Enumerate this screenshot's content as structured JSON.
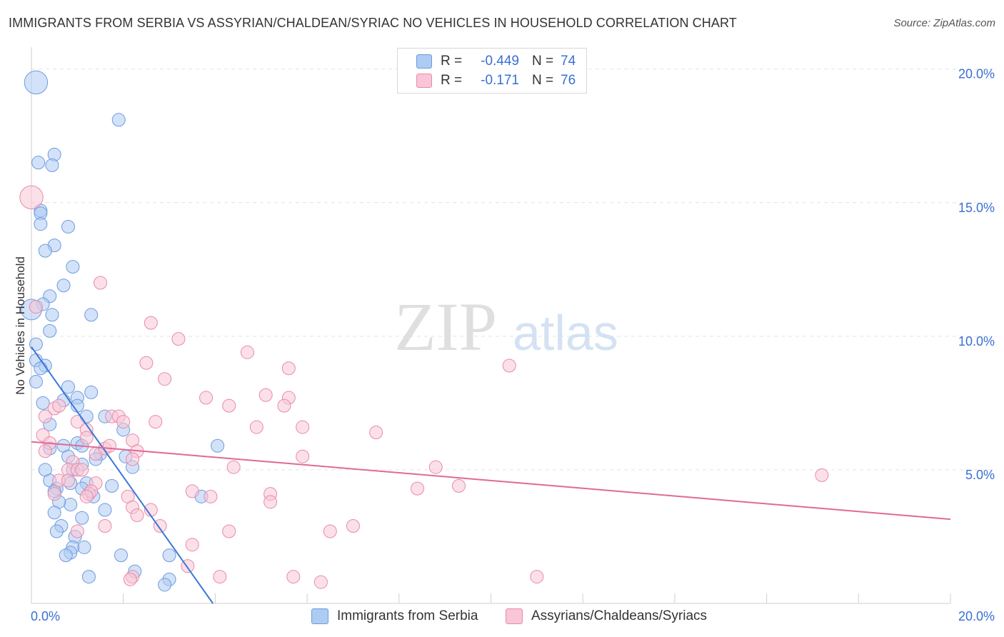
{
  "title": "IMMIGRANTS FROM SERBIA VS ASSYRIAN/CHALDEAN/SYRIAC NO VEHICLES IN HOUSEHOLD CORRELATION CHART",
  "source": "Source: ZipAtlas.com",
  "watermark": {
    "zip": "ZIP",
    "atlas": "atlas"
  },
  "legend_top": [
    {
      "label": "R =",
      "r": "-0.449",
      "n_label": "N =",
      "n": "74",
      "color": "#aecbf2",
      "border": "#6b9be0"
    },
    {
      "label": "R =",
      "r": "-0.171",
      "n_label": "N =",
      "n": "76",
      "color": "#f8c6d6",
      "border": "#e88aab"
    }
  ],
  "legend_bottom": [
    {
      "label": "Immigrants from Serbia",
      "color": "#aecbf2",
      "border": "#6b9be0"
    },
    {
      "label": "Assyrians/Chaldeans/Syriacs",
      "color": "#f8c6d6",
      "border": "#e88aab"
    }
  ],
  "chart_data": {
    "type": "scatter",
    "title": "IMMIGRANTS FROM SERBIA VS ASSYRIAN/CHALDEAN/SYRIAC NO VEHICLES IN HOUSEHOLD CORRELATION CHART",
    "xlabel": "",
    "ylabel": "No Vehicles in Household",
    "xlim": [
      0,
      20
    ],
    "ylim": [
      0,
      20.5
    ],
    "x_tick_labels": [
      {
        "value": 0,
        "label": "0.0%"
      },
      {
        "value": 20,
        "label": "20.0%"
      }
    ],
    "y_tick_labels": [
      {
        "value": 5,
        "label": "5.0%"
      },
      {
        "value": 10,
        "label": "10.0%"
      },
      {
        "value": 15,
        "label": "15.0%"
      },
      {
        "value": 20,
        "label": "20.0%"
      }
    ],
    "series": [
      {
        "name": "Immigrants from Serbia",
        "color": "#6b9be0",
        "fill": "#aecbf2",
        "trend_color": "#3a78d8",
        "trend": {
          "x0": 0,
          "y0": 9.6,
          "x1": 3.95,
          "y1": 0
        },
        "points": [
          [
            0.1,
            19.5,
            1.8
          ],
          [
            1.9,
            18.1,
            1
          ],
          [
            0.15,
            16.5,
            1
          ],
          [
            0.5,
            16.8,
            1
          ],
          [
            0.45,
            16.4,
            1
          ],
          [
            0.2,
            14.7,
            1
          ],
          [
            0.2,
            14.6,
            1
          ],
          [
            0.2,
            14.2,
            1
          ],
          [
            0.8,
            14.1,
            1
          ],
          [
            0.5,
            13.4,
            1
          ],
          [
            0.3,
            13.2,
            1
          ],
          [
            0.9,
            12.6,
            1
          ],
          [
            0.7,
            11.9,
            1
          ],
          [
            0.4,
            11.5,
            1
          ],
          [
            0.25,
            11.2,
            1
          ],
          [
            0.0,
            11.0,
            1.6
          ],
          [
            0.45,
            10.8,
            1
          ],
          [
            1.3,
            10.8,
            1
          ],
          [
            0.4,
            10.2,
            1
          ],
          [
            0.1,
            9.7,
            1
          ],
          [
            0.1,
            9.1,
            1
          ],
          [
            0.3,
            8.9,
            1
          ],
          [
            0.2,
            8.8,
            1
          ],
          [
            0.1,
            8.3,
            1
          ],
          [
            0.8,
            8.1,
            1
          ],
          [
            1.3,
            7.9,
            1
          ],
          [
            1.0,
            7.7,
            1
          ],
          [
            0.7,
            7.6,
            1
          ],
          [
            0.25,
            7.5,
            1
          ],
          [
            1.0,
            7.4,
            1
          ],
          [
            1.6,
            7.0,
            1
          ],
          [
            1.2,
            7.0,
            1
          ],
          [
            0.4,
            6.7,
            1
          ],
          [
            2.0,
            6.5,
            1
          ],
          [
            1.0,
            6.0,
            1
          ],
          [
            0.7,
            5.9,
            1
          ],
          [
            1.1,
            5.9,
            1
          ],
          [
            0.4,
            5.8,
            1
          ],
          [
            2.05,
            5.5,
            1
          ],
          [
            1.5,
            5.6,
            1
          ],
          [
            0.8,
            5.5,
            1
          ],
          [
            1.4,
            5.4,
            1
          ],
          [
            4.05,
            5.9,
            1
          ],
          [
            1.1,
            5.2,
            1
          ],
          [
            2.2,
            5.1,
            1
          ],
          [
            0.3,
            5.0,
            1
          ],
          [
            0.9,
            5.0,
            1
          ],
          [
            0.4,
            4.6,
            1
          ],
          [
            0.85,
            4.5,
            1
          ],
          [
            1.2,
            4.5,
            1
          ],
          [
            1.75,
            4.4,
            1
          ],
          [
            0.55,
            4.3,
            1
          ],
          [
            1.1,
            4.3,
            1
          ],
          [
            1.35,
            4.0,
            1
          ],
          [
            0.85,
            3.7,
            1
          ],
          [
            0.6,
            3.8,
            1
          ],
          [
            1.6,
            3.5,
            1
          ],
          [
            3.7,
            4.0,
            1
          ],
          [
            0.5,
            3.4,
            1
          ],
          [
            1.1,
            3.2,
            1
          ],
          [
            0.65,
            2.9,
            1
          ],
          [
            0.55,
            2.7,
            1
          ],
          [
            0.95,
            2.5,
            1
          ],
          [
            0.9,
            2.1,
            1
          ],
          [
            1.15,
            2.1,
            1
          ],
          [
            0.85,
            1.9,
            1
          ],
          [
            0.75,
            1.8,
            1
          ],
          [
            1.95,
            1.8,
            1
          ],
          [
            3.0,
            1.8,
            1
          ],
          [
            2.25,
            1.2,
            1
          ],
          [
            1.25,
            1.0,
            1
          ],
          [
            3.0,
            0.9,
            1
          ],
          [
            2.9,
            0.7,
            1
          ],
          [
            0.5,
            4.2,
            1
          ]
        ]
      },
      {
        "name": "Assyrians/Chaldeans/Syriacs",
        "color": "#e88aab",
        "fill": "#f8c6d6",
        "trend_color": "#e06a94",
        "trend": {
          "x0": 0,
          "y0": 6.05,
          "x1": 20,
          "y1": 3.15
        },
        "points": [
          [
            0.0,
            15.2,
            1.8
          ],
          [
            1.5,
            12.0,
            1
          ],
          [
            0.1,
            11.1,
            1
          ],
          [
            2.6,
            10.5,
            1
          ],
          [
            3.2,
            9.9,
            1
          ],
          [
            4.7,
            9.4,
            1
          ],
          [
            2.5,
            9.0,
            1
          ],
          [
            5.6,
            8.8,
            1
          ],
          [
            10.4,
            8.9,
            1
          ],
          [
            2.9,
            8.4,
            1
          ],
          [
            5.1,
            7.8,
            1
          ],
          [
            3.8,
            7.7,
            1
          ],
          [
            5.6,
            7.7,
            1
          ],
          [
            4.3,
            7.4,
            1
          ],
          [
            5.5,
            7.4,
            1
          ],
          [
            0.5,
            7.3,
            1
          ],
          [
            0.3,
            7.0,
            1
          ],
          [
            1.75,
            7.0,
            1
          ],
          [
            1.9,
            7.0,
            1
          ],
          [
            2.0,
            6.8,
            1
          ],
          [
            1.0,
            6.8,
            1
          ],
          [
            2.7,
            6.8,
            1
          ],
          [
            4.9,
            6.6,
            1
          ],
          [
            5.9,
            6.6,
            1
          ],
          [
            1.2,
            6.5,
            1
          ],
          [
            7.5,
            6.4,
            1
          ],
          [
            0.25,
            6.3,
            1
          ],
          [
            1.2,
            6.2,
            1
          ],
          [
            2.2,
            6.1,
            1
          ],
          [
            0.4,
            6.0,
            1
          ],
          [
            0.3,
            5.7,
            1
          ],
          [
            2.3,
            5.7,
            1
          ],
          [
            1.4,
            5.6,
            1
          ],
          [
            5.9,
            5.5,
            1
          ],
          [
            2.2,
            5.4,
            1
          ],
          [
            0.9,
            5.3,
            1
          ],
          [
            8.8,
            5.1,
            1
          ],
          [
            4.4,
            5.1,
            1
          ],
          [
            0.8,
            5.0,
            1
          ],
          [
            1.0,
            5.0,
            1
          ],
          [
            1.1,
            5.0,
            1
          ],
          [
            17.2,
            4.8,
            1
          ],
          [
            0.6,
            4.6,
            1
          ],
          [
            1.4,
            4.5,
            1
          ],
          [
            9.3,
            4.4,
            1
          ],
          [
            8.4,
            4.3,
            1
          ],
          [
            3.5,
            4.2,
            1
          ],
          [
            5.2,
            4.1,
            1
          ],
          [
            0.5,
            4.1,
            1
          ],
          [
            1.25,
            4.1,
            1
          ],
          [
            2.1,
            4.0,
            1
          ],
          [
            3.9,
            4.0,
            1
          ],
          [
            5.2,
            3.8,
            1
          ],
          [
            2.2,
            3.6,
            1
          ],
          [
            2.6,
            3.5,
            1
          ],
          [
            2.3,
            3.3,
            1
          ],
          [
            1.6,
            2.9,
            1
          ],
          [
            2.8,
            2.9,
            1
          ],
          [
            7.0,
            2.9,
            1
          ],
          [
            1.0,
            2.7,
            1
          ],
          [
            6.5,
            2.7,
            1
          ],
          [
            4.3,
            2.7,
            1
          ],
          [
            3.5,
            2.2,
            1
          ],
          [
            3.4,
            1.4,
            1
          ],
          [
            2.2,
            1.0,
            1
          ],
          [
            4.1,
            1.0,
            1
          ],
          [
            5.7,
            1.0,
            1
          ],
          [
            11.0,
            1.0,
            1
          ],
          [
            2.15,
            0.9,
            1
          ],
          [
            6.3,
            0.8,
            1
          ],
          [
            0.6,
            7.4,
            1
          ],
          [
            1.6,
            5.8,
            1
          ],
          [
            1.3,
            4.2,
            1
          ],
          [
            0.8,
            4.6,
            1
          ],
          [
            1.7,
            5.9,
            1
          ],
          [
            1.2,
            4.0,
            1
          ]
        ]
      }
    ]
  }
}
